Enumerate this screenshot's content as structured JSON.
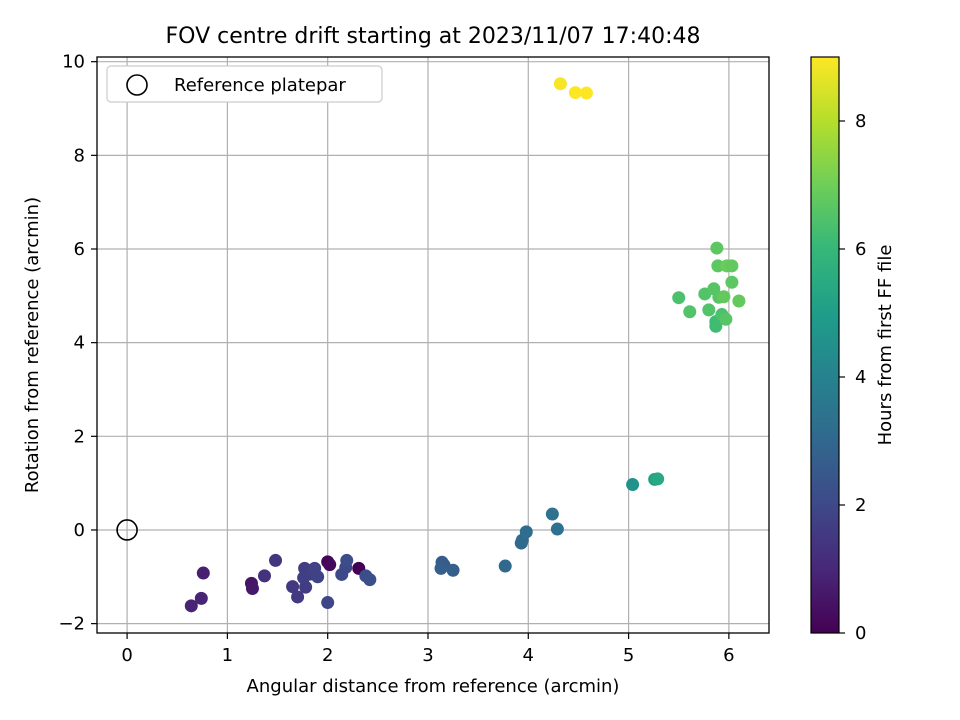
{
  "chart_data": {
    "type": "scatter",
    "title": "FOV centre drift starting at 2023/11/07 17:40:48",
    "xlabel": "Angular distance from reference (arcmin)",
    "ylabel": "Rotation from reference (arcmin)",
    "xlim": [
      -0.3,
      6.4
    ],
    "ylim": [
      -2.2,
      10.1
    ],
    "xticks": [
      0,
      1,
      2,
      3,
      4,
      5,
      6
    ],
    "yticks": [
      -2,
      0,
      2,
      4,
      6,
      8,
      10
    ],
    "grid": true,
    "legend": {
      "position": "top-left",
      "entries": [
        "Reference platepar"
      ]
    },
    "reference": {
      "x": 0,
      "y": 0
    },
    "colorbar": {
      "label": "Hours from first FF file",
      "range": [
        0,
        9
      ],
      "ticks": [
        0,
        2,
        4,
        6,
        8
      ],
      "colormap": [
        "#440154",
        "#482878",
        "#3e4989",
        "#31688e",
        "#26828e",
        "#1f9e89",
        "#35b779",
        "#6ece58",
        "#b5de2b",
        "#fde725"
      ]
    },
    "points": [
      {
        "x": 2.31,
        "y": -0.82,
        "h": 0.0
      },
      {
        "x": 2.0,
        "y": -0.68,
        "h": 0.1
      },
      {
        "x": 2.02,
        "y": -0.74,
        "h": 0.2
      },
      {
        "x": 1.24,
        "y": -1.14,
        "h": 0.5
      },
      {
        "x": 1.25,
        "y": -1.25,
        "h": 0.6
      },
      {
        "x": 0.76,
        "y": -0.92,
        "h": 0.8
      },
      {
        "x": 0.74,
        "y": -1.46,
        "h": 0.9
      },
      {
        "x": 0.64,
        "y": -1.62,
        "h": 0.9
      },
      {
        "x": 1.37,
        "y": -0.98,
        "h": 1.3
      },
      {
        "x": 1.48,
        "y": -0.65,
        "h": 1.4
      },
      {
        "x": 1.65,
        "y": -1.21,
        "h": 1.5
      },
      {
        "x": 1.7,
        "y": -1.43,
        "h": 1.5
      },
      {
        "x": 1.77,
        "y": -0.82,
        "h": 1.6
      },
      {
        "x": 1.78,
        "y": -1.22,
        "h": 1.6
      },
      {
        "x": 1.76,
        "y": -1.02,
        "h": 1.7
      },
      {
        "x": 1.83,
        "y": -0.94,
        "h": 1.7
      },
      {
        "x": 1.87,
        "y": -0.82,
        "h": 1.8
      },
      {
        "x": 1.9,
        "y": -1.0,
        "h": 1.8
      },
      {
        "x": 2.0,
        "y": -1.55,
        "h": 1.9
      },
      {
        "x": 2.14,
        "y": -0.95,
        "h": 2.0
      },
      {
        "x": 2.18,
        "y": -0.8,
        "h": 2.0
      },
      {
        "x": 2.19,
        "y": -0.65,
        "h": 2.1
      },
      {
        "x": 2.38,
        "y": -0.98,
        "h": 2.1
      },
      {
        "x": 2.42,
        "y": -1.06,
        "h": 2.2
      },
      {
        "x": 3.14,
        "y": -0.69,
        "h": 2.6
      },
      {
        "x": 3.16,
        "y": -0.75,
        "h": 2.6
      },
      {
        "x": 3.13,
        "y": -0.82,
        "h": 2.7
      },
      {
        "x": 3.25,
        "y": -0.86,
        "h": 2.7
      },
      {
        "x": 3.77,
        "y": -0.77,
        "h": 3.0
      },
      {
        "x": 3.93,
        "y": -0.28,
        "h": 3.1
      },
      {
        "x": 3.94,
        "y": -0.22,
        "h": 3.1
      },
      {
        "x": 3.98,
        "y": -0.04,
        "h": 3.2
      },
      {
        "x": 4.24,
        "y": 0.34,
        "h": 3.4
      },
      {
        "x": 4.29,
        "y": 0.02,
        "h": 3.4
      },
      {
        "x": 5.04,
        "y": 0.97,
        "h": 4.6
      },
      {
        "x": 5.26,
        "y": 1.08,
        "h": 5.2
      },
      {
        "x": 5.29,
        "y": 1.09,
        "h": 5.4
      },
      {
        "x": 5.5,
        "y": 4.96,
        "h": 6.4
      },
      {
        "x": 5.61,
        "y": 4.66,
        "h": 6.5
      },
      {
        "x": 5.76,
        "y": 5.04,
        "h": 6.5
      },
      {
        "x": 5.8,
        "y": 4.7,
        "h": 6.5
      },
      {
        "x": 5.85,
        "y": 5.15,
        "h": 6.6
      },
      {
        "x": 5.87,
        "y": 4.45,
        "h": 6.2
      },
      {
        "x": 5.87,
        "y": 4.35,
        "h": 6.2
      },
      {
        "x": 5.88,
        "y": 6.02,
        "h": 6.7
      },
      {
        "x": 5.89,
        "y": 5.64,
        "h": 6.7
      },
      {
        "x": 5.9,
        "y": 4.97,
        "h": 6.6
      },
      {
        "x": 5.93,
        "y": 4.6,
        "h": 6.4
      },
      {
        "x": 5.95,
        "y": 4.98,
        "h": 6.8
      },
      {
        "x": 5.97,
        "y": 4.5,
        "h": 6.6
      },
      {
        "x": 5.98,
        "y": 5.64,
        "h": 6.9
      },
      {
        "x": 6.03,
        "y": 5.64,
        "h": 6.8
      },
      {
        "x": 6.03,
        "y": 5.29,
        "h": 6.7
      },
      {
        "x": 6.1,
        "y": 4.89,
        "h": 6.8
      },
      {
        "x": 4.32,
        "y": 9.53,
        "h": 8.9
      },
      {
        "x": 4.47,
        "y": 9.34,
        "h": 9.0
      },
      {
        "x": 4.58,
        "y": 9.33,
        "h": 9.0
      }
    ]
  }
}
